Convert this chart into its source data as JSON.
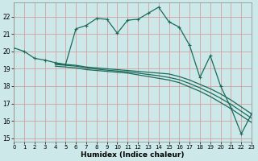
{
  "title": "",
  "xlabel": "Humidex (Indice chaleur)",
  "ylabel": "",
  "bg_color": "#cce8e8",
  "grid_color": "#d4a0a0",
  "line_color": "#1a6b5a",
  "xlim": [
    0,
    23
  ],
  "ylim": [
    14.8,
    22.8
  ],
  "yticks": [
    15,
    16,
    17,
    18,
    19,
    20,
    21,
    22
  ],
  "xticks": [
    0,
    1,
    2,
    3,
    4,
    5,
    6,
    7,
    8,
    9,
    10,
    11,
    12,
    13,
    14,
    15,
    16,
    17,
    18,
    19,
    20,
    21,
    22,
    23
  ],
  "line1_x": [
    0,
    1,
    2,
    3,
    4,
    5,
    6,
    7,
    8,
    9,
    10,
    11,
    12,
    13,
    14,
    15,
    16,
    17,
    18,
    19,
    20,
    21,
    22,
    23
  ],
  "line1_y": [
    20.2,
    20.0,
    19.6,
    19.5,
    19.35,
    19.25,
    21.3,
    21.5,
    21.9,
    21.85,
    21.05,
    21.8,
    21.85,
    22.2,
    22.55,
    21.7,
    21.4,
    20.35,
    18.5,
    19.75,
    18.0,
    16.75,
    15.25,
    16.4
  ],
  "line2_x": [
    4,
    5,
    6,
    7,
    8,
    9,
    10,
    11,
    12,
    13,
    14,
    15,
    16,
    17,
    18,
    19,
    20,
    21,
    22,
    23
  ],
  "line2_y": [
    19.3,
    19.25,
    19.2,
    19.1,
    19.05,
    19.0,
    18.95,
    18.9,
    18.85,
    18.8,
    18.75,
    18.7,
    18.55,
    18.35,
    18.1,
    17.85,
    17.55,
    17.2,
    16.8,
    16.4
  ],
  "line3_x": [
    4,
    5,
    6,
    7,
    8,
    9,
    10,
    11,
    12,
    13,
    14,
    15,
    16,
    17,
    18,
    19,
    20,
    21,
    22,
    23
  ],
  "line3_y": [
    19.15,
    19.1,
    19.05,
    18.95,
    18.9,
    18.85,
    18.8,
    18.75,
    18.65,
    18.55,
    18.45,
    18.35,
    18.2,
    17.95,
    17.7,
    17.4,
    17.05,
    16.7,
    16.3,
    15.9
  ],
  "line4_x": [
    4,
    5,
    6,
    7,
    8,
    9,
    10,
    11,
    12,
    13,
    14,
    15,
    16,
    17,
    18,
    19,
    20,
    21,
    22,
    23
  ],
  "line4_y": [
    19.25,
    19.2,
    19.15,
    19.05,
    18.98,
    18.92,
    18.87,
    18.82,
    18.75,
    18.67,
    18.6,
    18.5,
    18.37,
    18.15,
    17.9,
    17.62,
    17.3,
    16.95,
    16.55,
    16.15
  ]
}
